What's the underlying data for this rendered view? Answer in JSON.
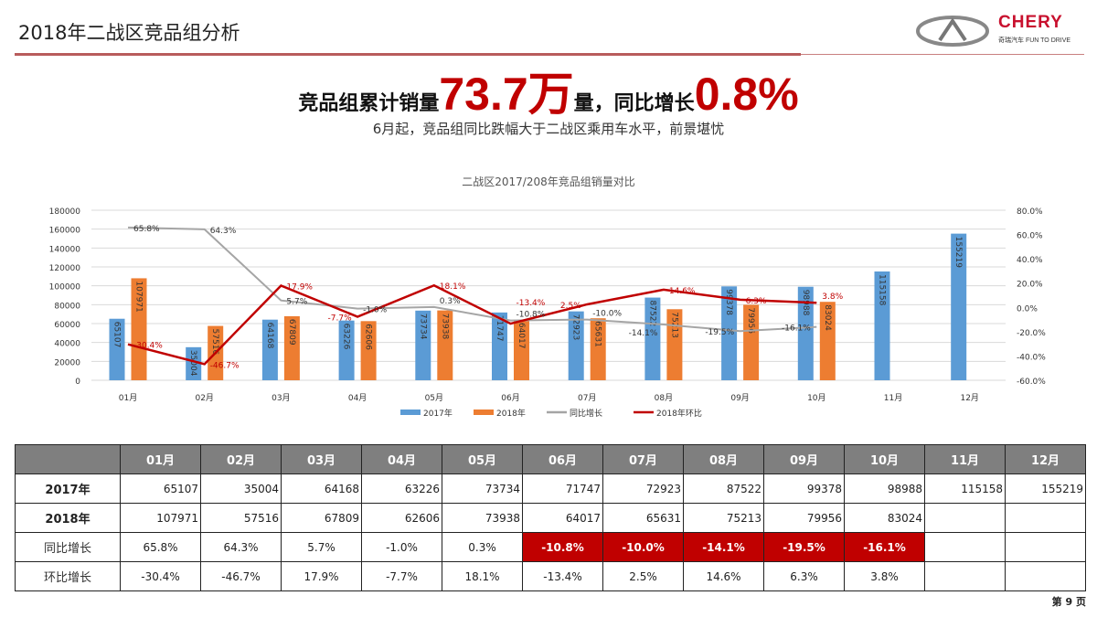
{
  "header": {
    "title": "2018年二战区竞品组分析",
    "brand": "CHERY",
    "brand_sub": "奇瑞汽车 FUN TO DRIVE"
  },
  "headline": {
    "part1": "竞品组累计销量",
    "value1": "73.7万",
    "part2": "量，同比增长",
    "value2": "0.8%"
  },
  "subtitle": "6月起，竞品组同比跌幅大于二战区乘用车水平，前景堪忧",
  "chart_data": {
    "type": "bar",
    "title": "二战区2017/208年竞品组销量对比",
    "categories": [
      "01月",
      "02月",
      "03月",
      "04月",
      "05月",
      "06月",
      "07月",
      "08月",
      "09月",
      "10月",
      "11月",
      "12月"
    ],
    "ylim": [
      0,
      180000
    ],
    "yticks": [
      0,
      20000,
      40000,
      60000,
      80000,
      100000,
      120000,
      140000,
      160000,
      180000
    ],
    "y2lim": [
      -60,
      80
    ],
    "y2ticks": [
      "-60.0%",
      "-40.0%",
      "-20.0%",
      "0.0%",
      "20.0%",
      "40.0%",
      "60.0%",
      "80.0%"
    ],
    "grid": true,
    "legend": "bottom",
    "series": [
      {
        "name": "2017年",
        "type": "bar",
        "color": "#5b9bd5",
        "values": [
          65107,
          35004,
          64168,
          63226,
          73734,
          71747,
          72923,
          87522,
          99378,
          98988,
          115158,
          155219
        ]
      },
      {
        "name": "2018年",
        "type": "bar",
        "color": "#ed7d31",
        "values": [
          107971,
          57516,
          67809,
          62606,
          73938,
          64017,
          65631,
          75213,
          79956,
          83024,
          null,
          null
        ]
      },
      {
        "name": "同比增长",
        "type": "line",
        "axis": "right",
        "color": "#a5a5a5",
        "values": [
          65.8,
          64.3,
          5.7,
          -1.0,
          0.3,
          -10.8,
          -10.0,
          -14.1,
          -19.5,
          -16.1,
          null,
          null
        ]
      },
      {
        "name": "2018年环比",
        "type": "line",
        "axis": "right",
        "color": "#c00000",
        "values": [
          -30.4,
          -46.7,
          17.9,
          -7.7,
          18.1,
          -13.4,
          2.5,
          14.6,
          6.3,
          3.8,
          null,
          null
        ]
      }
    ]
  },
  "table": {
    "headers": [
      "",
      "01月",
      "02月",
      "03月",
      "04月",
      "05月",
      "06月",
      "07月",
      "08月",
      "09月",
      "10月",
      "11月",
      "12月"
    ],
    "rows": [
      {
        "label": "2017年",
        "kind": "num",
        "cells": [
          "65107",
          "35004",
          "64168",
          "63226",
          "73734",
          "71747",
          "72923",
          "87522",
          "99378",
          "98988",
          "115158",
          "155219"
        ]
      },
      {
        "label": "2018年",
        "kind": "num",
        "cells": [
          "107971",
          "57516",
          "67809",
          "62606",
          "73938",
          "64017",
          "65631",
          "75213",
          "79956",
          "83024",
          "",
          ""
        ]
      },
      {
        "label": "同比增长",
        "kind": "pct",
        "cells": [
          "65.8%",
          "64.3%",
          "5.7%",
          "-1.0%",
          "0.3%",
          "-10.8%",
          "-10.0%",
          "-14.1%",
          "-19.5%",
          "-16.1%",
          "",
          ""
        ],
        "highlight": [
          5,
          6,
          7,
          8,
          9
        ],
        "highlight_color": "#c00000"
      },
      {
        "label": "环比增长",
        "kind": "pct",
        "cells": [
          "-30.4%",
          "-46.7%",
          "17.9%",
          "-7.7%",
          "18.1%",
          "-13.4%",
          "2.5%",
          "14.6%",
          "6.3%",
          "3.8%",
          "",
          ""
        ]
      }
    ]
  },
  "page": "第 9 页"
}
